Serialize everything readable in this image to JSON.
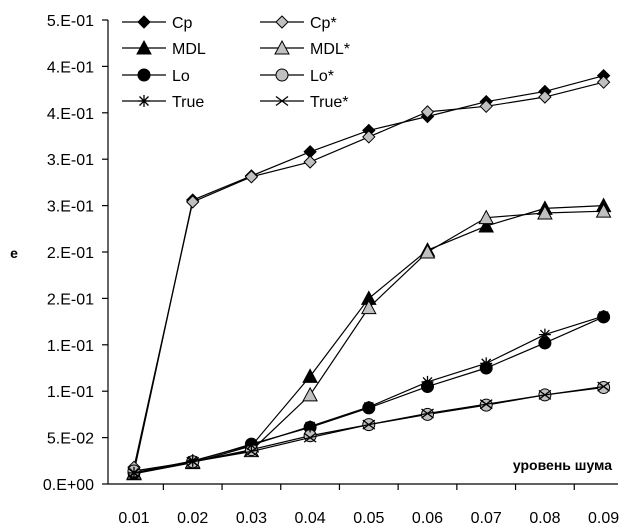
{
  "chart_data": {
    "type": "line",
    "title": "",
    "xlabel": "уровень шума",
    "ylabel": "e",
    "x": [
      0.01,
      0.02,
      0.03,
      0.04,
      0.05,
      0.06,
      0.07,
      0.08,
      0.09
    ],
    "x_tick_labels": [
      "0.01",
      "0.02",
      "0.03",
      "0.04",
      "0.05",
      "0.06",
      "0.07",
      "0.08",
      "0.09"
    ],
    "y_tick_labels": [
      "0.E+00",
      "5.E-02",
      "1.E-01",
      "1.E-01",
      "2.E-01",
      "2.E-01",
      "3.E-01",
      "3.E-01",
      "4.E-01",
      "4.E-01",
      "5.E-01"
    ],
    "y_ticks": [
      0,
      0.05,
      0.1,
      0.15,
      0.2,
      0.25,
      0.3,
      0.35,
      0.4,
      0.45,
      0.5
    ],
    "ylim": [
      0,
      0.5
    ],
    "grid": false,
    "legend_position": "top-left",
    "legend_columns": 2,
    "series": [
      {
        "name": "Cp",
        "marker": "diamond",
        "fill": "#000000",
        "line_color": "#000000",
        "values": [
          0.013,
          0.306,
          0.332,
          0.358,
          0.381,
          0.396,
          0.412,
          0.423,
          0.44
        ]
      },
      {
        "name": "Cp*",
        "marker": "diamond",
        "fill": "#c0c0c0",
        "line_color": "#000000",
        "values": [
          0.018,
          0.304,
          0.331,
          0.347,
          0.374,
          0.401,
          0.407,
          0.417,
          0.433
        ]
      },
      {
        "name": "MDL",
        "marker": "triangle",
        "fill": "#000000",
        "line_color": "#000000",
        "values": [
          0.011,
          0.023,
          0.041,
          0.116,
          0.2,
          0.252,
          0.278,
          0.297,
          0.3
        ]
      },
      {
        "name": "MDL*",
        "marker": "triangle",
        "fill": "#c0c0c0",
        "line_color": "#000000",
        "values": [
          0.012,
          0.024,
          0.036,
          0.096,
          0.19,
          0.25,
          0.287,
          0.292,
          0.294
        ]
      },
      {
        "name": "Lo",
        "marker": "circle",
        "fill": "#000000",
        "line_color": "#000000",
        "values": [
          0.012,
          0.024,
          0.043,
          0.061,
          0.082,
          0.105,
          0.125,
          0.152,
          0.18
        ]
      },
      {
        "name": "Lo*",
        "marker": "circle",
        "fill": "#c0c0c0",
        "line_color": "#000000",
        "values": [
          0.014,
          0.024,
          0.037,
          0.052,
          0.064,
          0.075,
          0.085,
          0.096,
          0.104
        ]
      },
      {
        "name": "True",
        "marker": "star",
        "fill": "#000000",
        "line_color": "#000000",
        "values": [
          0.012,
          0.025,
          0.042,
          0.062,
          0.083,
          0.11,
          0.13,
          0.161,
          0.181
        ]
      },
      {
        "name": "True*",
        "marker": "x",
        "fill": "#000000",
        "line_color": "#000000",
        "values": [
          0.012,
          0.024,
          0.035,
          0.05,
          0.064,
          0.076,
          0.086,
          0.096,
          0.105
        ]
      }
    ]
  }
}
